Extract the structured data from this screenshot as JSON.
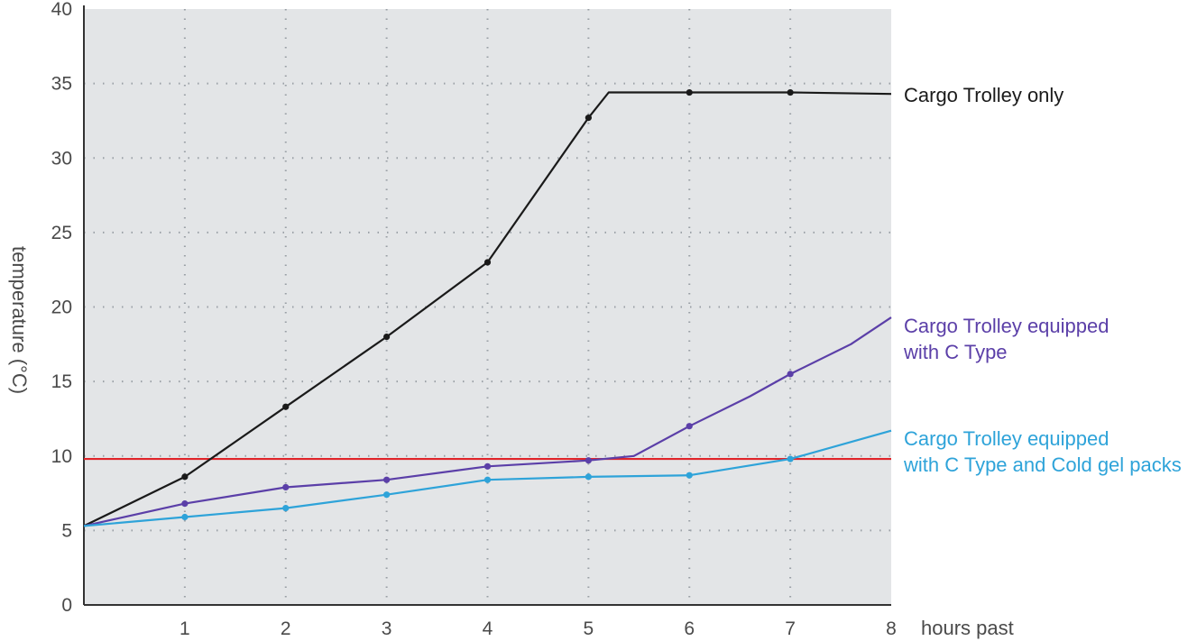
{
  "chart_data": {
    "type": "line",
    "title": "",
    "xlabel": "hours past",
    "ylabel": "temperature (°C)",
    "xlim": [
      0,
      8
    ],
    "ylim": [
      0,
      40
    ],
    "x_ticks": [
      "1",
      "2",
      "3",
      "4",
      "5",
      "6",
      "7",
      "8"
    ],
    "y_ticks": [
      "0",
      "5",
      "10",
      "15",
      "20",
      "25",
      "30",
      "35",
      "40"
    ],
    "grid": true,
    "legend": "right, inline labels at line ends",
    "threshold": {
      "value": 9.8,
      "color": "#e0242a"
    },
    "series": [
      {
        "name": "Cargo Trolley only",
        "label_lines": [
          "Cargo Trolley only"
        ],
        "color": "#1a1a1a",
        "points": [
          [
            0,
            5.3
          ],
          [
            1,
            8.6
          ],
          [
            2,
            13.3
          ],
          [
            3,
            18.0
          ],
          [
            4,
            23.0
          ],
          [
            5,
            32.7
          ],
          [
            5.2,
            34.4
          ],
          [
            6,
            34.4
          ],
          [
            7,
            34.4
          ],
          [
            8,
            34.3
          ]
        ],
        "markers": [
          1,
          2,
          3,
          4,
          5,
          6,
          7
        ]
      },
      {
        "name": "Cargo Trolley equipped with C Type",
        "label_lines": [
          "Cargo Trolley equipped",
          "with C Type"
        ],
        "color": "#5b3fa8",
        "points": [
          [
            0,
            5.3
          ],
          [
            1,
            6.8
          ],
          [
            2,
            7.9
          ],
          [
            3,
            8.4
          ],
          [
            4,
            9.3
          ],
          [
            5,
            9.7
          ],
          [
            5.45,
            10.0
          ],
          [
            6,
            12.0
          ],
          [
            6.6,
            14.0
          ],
          [
            7,
            15.5
          ],
          [
            7.6,
            17.5
          ],
          [
            8,
            19.3
          ]
        ],
        "markers": [
          1,
          2,
          3,
          4,
          5,
          6,
          7
        ]
      },
      {
        "name": "Cargo Trolley equipped with C Type and Cold gel packs",
        "label_lines": [
          "Cargo Trolley equipped",
          "with C Type and Cold gel packs"
        ],
        "color": "#2ea3d9",
        "points": [
          [
            0,
            5.3
          ],
          [
            1,
            5.9
          ],
          [
            2,
            6.5
          ],
          [
            3,
            7.4
          ],
          [
            4,
            8.4
          ],
          [
            5,
            8.6
          ],
          [
            6,
            8.7
          ],
          [
            7,
            9.8
          ],
          [
            8,
            11.7
          ]
        ],
        "markers": [
          1,
          2,
          3,
          4,
          5,
          6,
          7
        ]
      }
    ]
  },
  "colors": {
    "plot_background": "#e3e5e7",
    "grid": "#9aa0a6",
    "axis": "#333333"
  }
}
